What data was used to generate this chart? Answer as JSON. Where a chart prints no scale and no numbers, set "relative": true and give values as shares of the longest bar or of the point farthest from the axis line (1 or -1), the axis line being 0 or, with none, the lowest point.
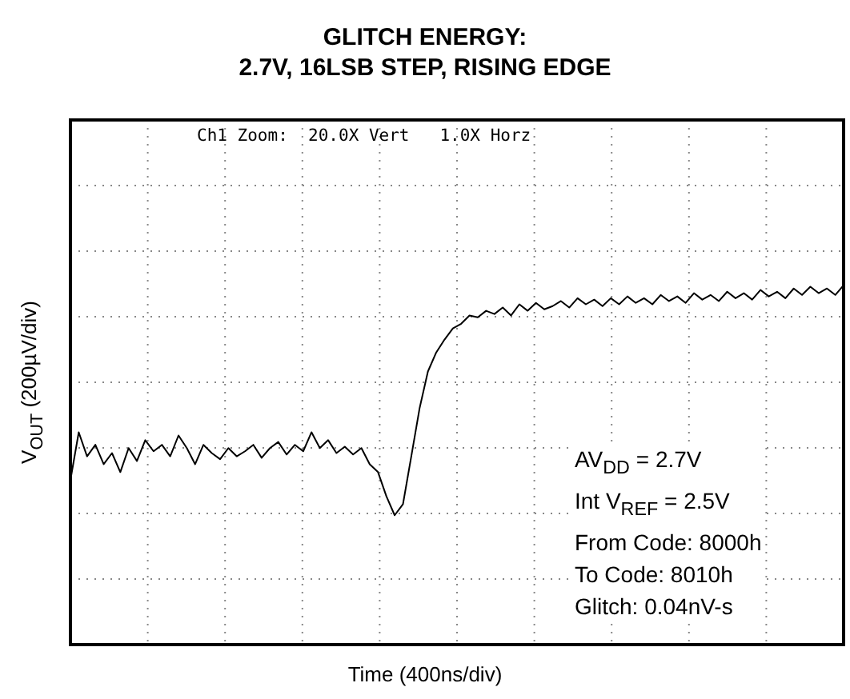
{
  "chart_data": {
    "type": "line",
    "title": "GLITCH ENERGY:",
    "subtitle": "2.7V, 16LSB STEP, RISING EDGE",
    "xlabel": "Time (400ns/div)",
    "ylabel": "V$_{OUT}$ (200µV/div)",
    "relative": true,
    "grid": true,
    "marker": "none",
    "line_style": "solid",
    "annotations": [
      "Ch1 Zoom:  20.0X Vert   1.0X Horz",
      "AV$_{DD}$ = 2.7V",
      "Int V$_{REF}$ = 2.5V",
      "From Code: 8000h",
      "To Code: 8010h",
      "Glitch: 0.04nV-s"
    ],
    "categories": [
      null,
      null,
      null,
      null,
      null,
      null,
      null,
      null,
      null,
      null,
      null,
      null,
      null,
      null,
      null,
      null,
      null,
      null,
      null,
      null,
      null,
      null,
      null,
      null,
      null,
      null,
      null,
      null,
      null,
      null,
      null,
      null,
      null,
      null,
      null,
      null,
      null,
      null,
      null,
      null,
      null,
      null,
      null,
      null,
      null,
      null,
      null,
      null,
      null,
      null,
      null,
      null,
      null,
      null,
      null,
      null,
      null,
      null,
      null,
      null,
      null,
      null,
      null,
      null,
      null,
      null,
      null,
      null,
      null,
      null,
      null,
      null,
      null,
      null,
      null,
      null,
      null,
      null,
      null,
      null,
      null,
      null,
      null,
      null,
      null,
      null,
      null,
      null,
      null,
      null,
      null,
      null,
      null,
      null
    ],
    "series": [
      {
        "color": "#000000",
        "values": [
          0.458,
          0.591,
          0.524,
          0.556,
          0.502,
          0.533,
          0.48,
          0.547,
          0.511,
          0.569,
          0.538,
          0.556,
          0.524,
          0.582,
          0.547,
          0.502,
          0.556,
          0.533,
          0.516,
          0.547,
          0.524,
          0.538,
          0.556,
          0.52,
          0.547,
          0.564,
          0.529,
          0.556,
          0.538,
          0.591,
          0.547,
          0.569,
          0.533,
          0.551,
          0.529,
          0.547,
          0.502,
          0.48,
          0.413,
          0.36,
          0.391,
          0.524,
          0.658,
          0.76,
          0.813,
          0.849,
          0.88,
          0.893,
          0.916,
          0.911,
          0.929,
          0.92,
          0.938,
          0.916,
          0.947,
          0.929,
          0.951,
          0.933,
          0.942,
          0.956,
          0.938,
          0.964,
          0.947,
          0.96,
          0.942,
          0.964,
          0.947,
          0.969,
          0.951,
          0.964,
          0.947,
          0.973,
          0.956,
          0.969,
          0.951,
          0.978,
          0.96,
          0.973,
          0.956,
          0.982,
          0.964,
          0.978,
          0.96,
          0.987,
          0.969,
          0.982,
          0.964,
          0.991,
          0.973,
          0.996,
          0.978,
          0.991,
          0.973,
          1
        ]
      }
    ]
  }
}
